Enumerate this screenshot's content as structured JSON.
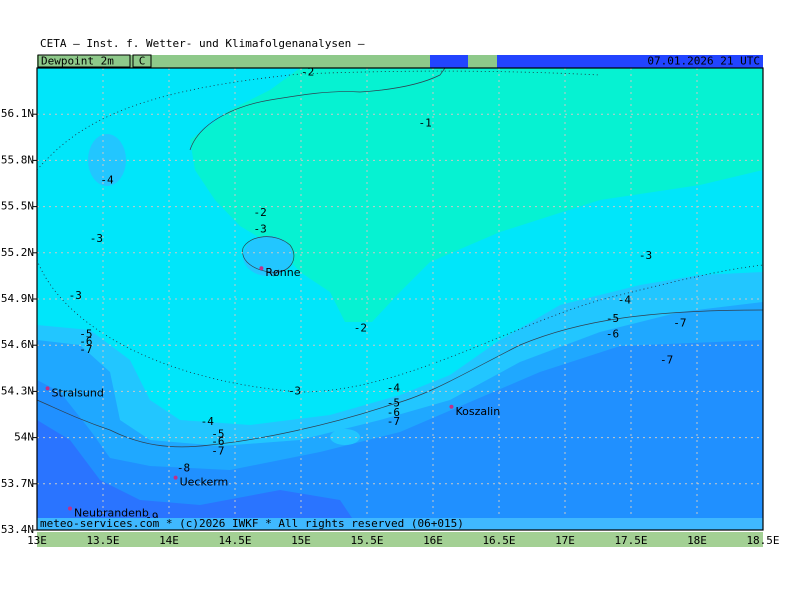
{
  "header": {
    "title": "CETA — Inst. f. Wetter- und Klimafolgenanalysen —",
    "field": "Dewpoint_2m",
    "unit": "C",
    "timestamp": "07.01.2026 21 UTC"
  },
  "footer": "meteo-services.com * (c)2026 IWKF * All rights reserved (06+015)",
  "lonlim": [
    13,
    18.5
  ],
  "latlim": [
    53.4,
    56.4
  ],
  "lon_ticks": [
    {
      "value": 13,
      "label": "13E"
    },
    {
      "value": 13.5,
      "label": "13.5E"
    },
    {
      "value": 14,
      "label": "14E"
    },
    {
      "value": 14.5,
      "label": "14.5E"
    },
    {
      "value": 15,
      "label": "15E"
    },
    {
      "value": 15.5,
      "label": "15.5E"
    },
    {
      "value": 16,
      "label": "16E"
    },
    {
      "value": 16.5,
      "label": "16.5E"
    },
    {
      "value": 17,
      "label": "17E"
    },
    {
      "value": 17.5,
      "label": "17.5E"
    },
    {
      "value": 18,
      "label": "18E"
    },
    {
      "value": 18.5,
      "label": "18.5E"
    }
  ],
  "lat_ticks": [
    {
      "value": 53.4,
      "label": "53.4N"
    },
    {
      "value": 53.7,
      "label": "53.7N"
    },
    {
      "value": 54,
      "label": "54N"
    },
    {
      "value": 54.3,
      "label": "54.3N"
    },
    {
      "value": 54.6,
      "label": "54.6N"
    },
    {
      "value": 54.9,
      "label": "54.9N"
    },
    {
      "value": 55.2,
      "label": "55.2N"
    },
    {
      "value": 55.5,
      "label": "55.5N"
    },
    {
      "value": 55.8,
      "label": "55.8N"
    },
    {
      "value": 56.1,
      "label": "56.1N"
    }
  ],
  "contours": [
    {
      "value": -2,
      "lon": 15.05,
      "lat": 56.37
    },
    {
      "value": -1,
      "lon": 15.94,
      "lat": 56.04
    },
    {
      "value": -4,
      "lon": 13.53,
      "lat": 55.67
    },
    {
      "value": -2,
      "lon": 14.69,
      "lat": 55.46
    },
    {
      "value": -3,
      "lon": 14.69,
      "lat": 55.35
    },
    {
      "value": -3,
      "lon": 13.45,
      "lat": 55.29
    },
    {
      "value": -3,
      "lon": 17.61,
      "lat": 55.18
    },
    {
      "value": -3,
      "lon": 13.29,
      "lat": 54.92
    },
    {
      "value": -4,
      "lon": 17.45,
      "lat": 54.89
    },
    {
      "value": -2,
      "lon": 15.45,
      "lat": 54.71
    },
    {
      "value": -5,
      "lon": 17.36,
      "lat": 54.77
    },
    {
      "value": -7,
      "lon": 17.87,
      "lat": 54.74
    },
    {
      "value": -6,
      "lon": 17.36,
      "lat": 54.67
    },
    {
      "value": -5,
      "lon": 13.37,
      "lat": 54.67
    },
    {
      "value": -6,
      "lon": 13.37,
      "lat": 54.62
    },
    {
      "value": -7,
      "lon": 13.37,
      "lat": 54.57
    },
    {
      "value": -7,
      "lon": 17.77,
      "lat": 54.5
    },
    {
      "value": -4,
      "lon": 15.7,
      "lat": 54.32
    },
    {
      "value": -3,
      "lon": 14.95,
      "lat": 54.3
    },
    {
      "value": -5,
      "lon": 15.7,
      "lat": 54.22
    },
    {
      "value": -6,
      "lon": 15.7,
      "lat": 54.16
    },
    {
      "value": -7,
      "lon": 15.7,
      "lat": 54.1
    },
    {
      "value": -4,
      "lon": 14.29,
      "lat": 54.1
    },
    {
      "value": -5,
      "lon": 14.37,
      "lat": 54.02
    },
    {
      "value": -6,
      "lon": 14.37,
      "lat": 53.97
    },
    {
      "value": -7,
      "lon": 14.37,
      "lat": 53.91
    },
    {
      "value": -8,
      "lon": 14.11,
      "lat": 53.8
    },
    {
      "value": -9,
      "lon": 13.87,
      "lat": 53.48
    }
  ],
  "cities": [
    {
      "name": "Rønne",
      "lon": 14.7,
      "lat": 55.1
    },
    {
      "name": "Stralsund",
      "lon": 13.08,
      "lat": 54.32
    },
    {
      "name": "Koszalin",
      "lon": 16.14,
      "lat": 54.2
    },
    {
      "name": "Ueckerm",
      "lon": 14.05,
      "lat": 53.74
    },
    {
      "name": "Neubrandenb",
      "lon": 13.25,
      "lat": 53.54
    }
  ]
}
